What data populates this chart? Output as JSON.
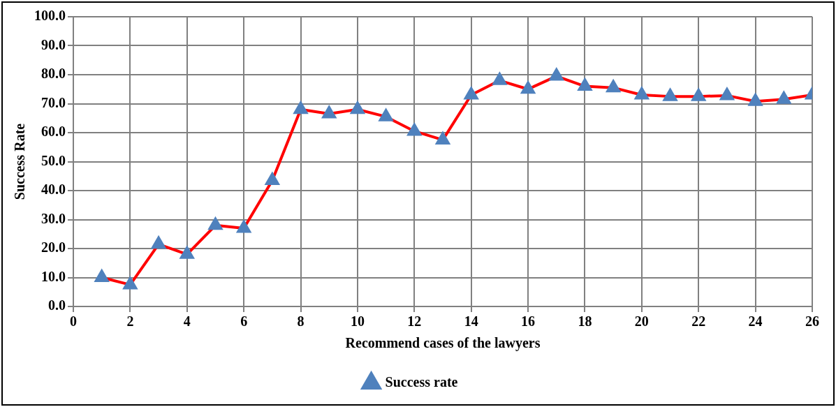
{
  "chart_data": {
    "type": "line",
    "xlabel": "Recommend cases of the lawyers",
    "ylabel": "Success Rate",
    "x": [
      1,
      2,
      3,
      4,
      5,
      6,
      7,
      8,
      9,
      10,
      11,
      12,
      13,
      14,
      15,
      16,
      17,
      18,
      19,
      20,
      21,
      22,
      23,
      24,
      25,
      26
    ],
    "series": [
      {
        "name": "Success rate",
        "color": "#ff0000",
        "values": [
          10,
          7.5,
          21.5,
          18,
          28,
          27,
          43.5,
          68,
          66.5,
          68,
          65.5,
          60.5,
          57.5,
          73,
          78,
          75,
          79.5,
          76,
          75.5,
          73,
          72.5,
          72.5,
          72.8,
          70.8,
          71.5,
          73
        ]
      }
    ],
    "xlim": [
      0,
      26
    ],
    "xticks": [
      0,
      2,
      4,
      6,
      8,
      10,
      12,
      14,
      16,
      18,
      20,
      22,
      24,
      26
    ],
    "ylim": [
      0,
      100
    ],
    "yticks": [
      {
        "value": 0,
        "label": "0.0"
      },
      {
        "value": 10,
        "label": "10.0"
      },
      {
        "value": 20,
        "label": "20.0"
      },
      {
        "value": 30,
        "label": "30.0"
      },
      {
        "value": 40,
        "label": "40.0"
      },
      {
        "value": 50,
        "label": "50.0"
      },
      {
        "value": 60,
        "label": "60.0"
      },
      {
        "value": 70,
        "label": "70.0"
      },
      {
        "value": 80,
        "label": "80.0"
      },
      {
        "value": 90,
        "label": "90.0"
      },
      {
        "value": 100,
        "label": "100.0"
      }
    ],
    "grid": true,
    "legend": "bottom",
    "marker": "triangle",
    "line_style": "solid"
  }
}
